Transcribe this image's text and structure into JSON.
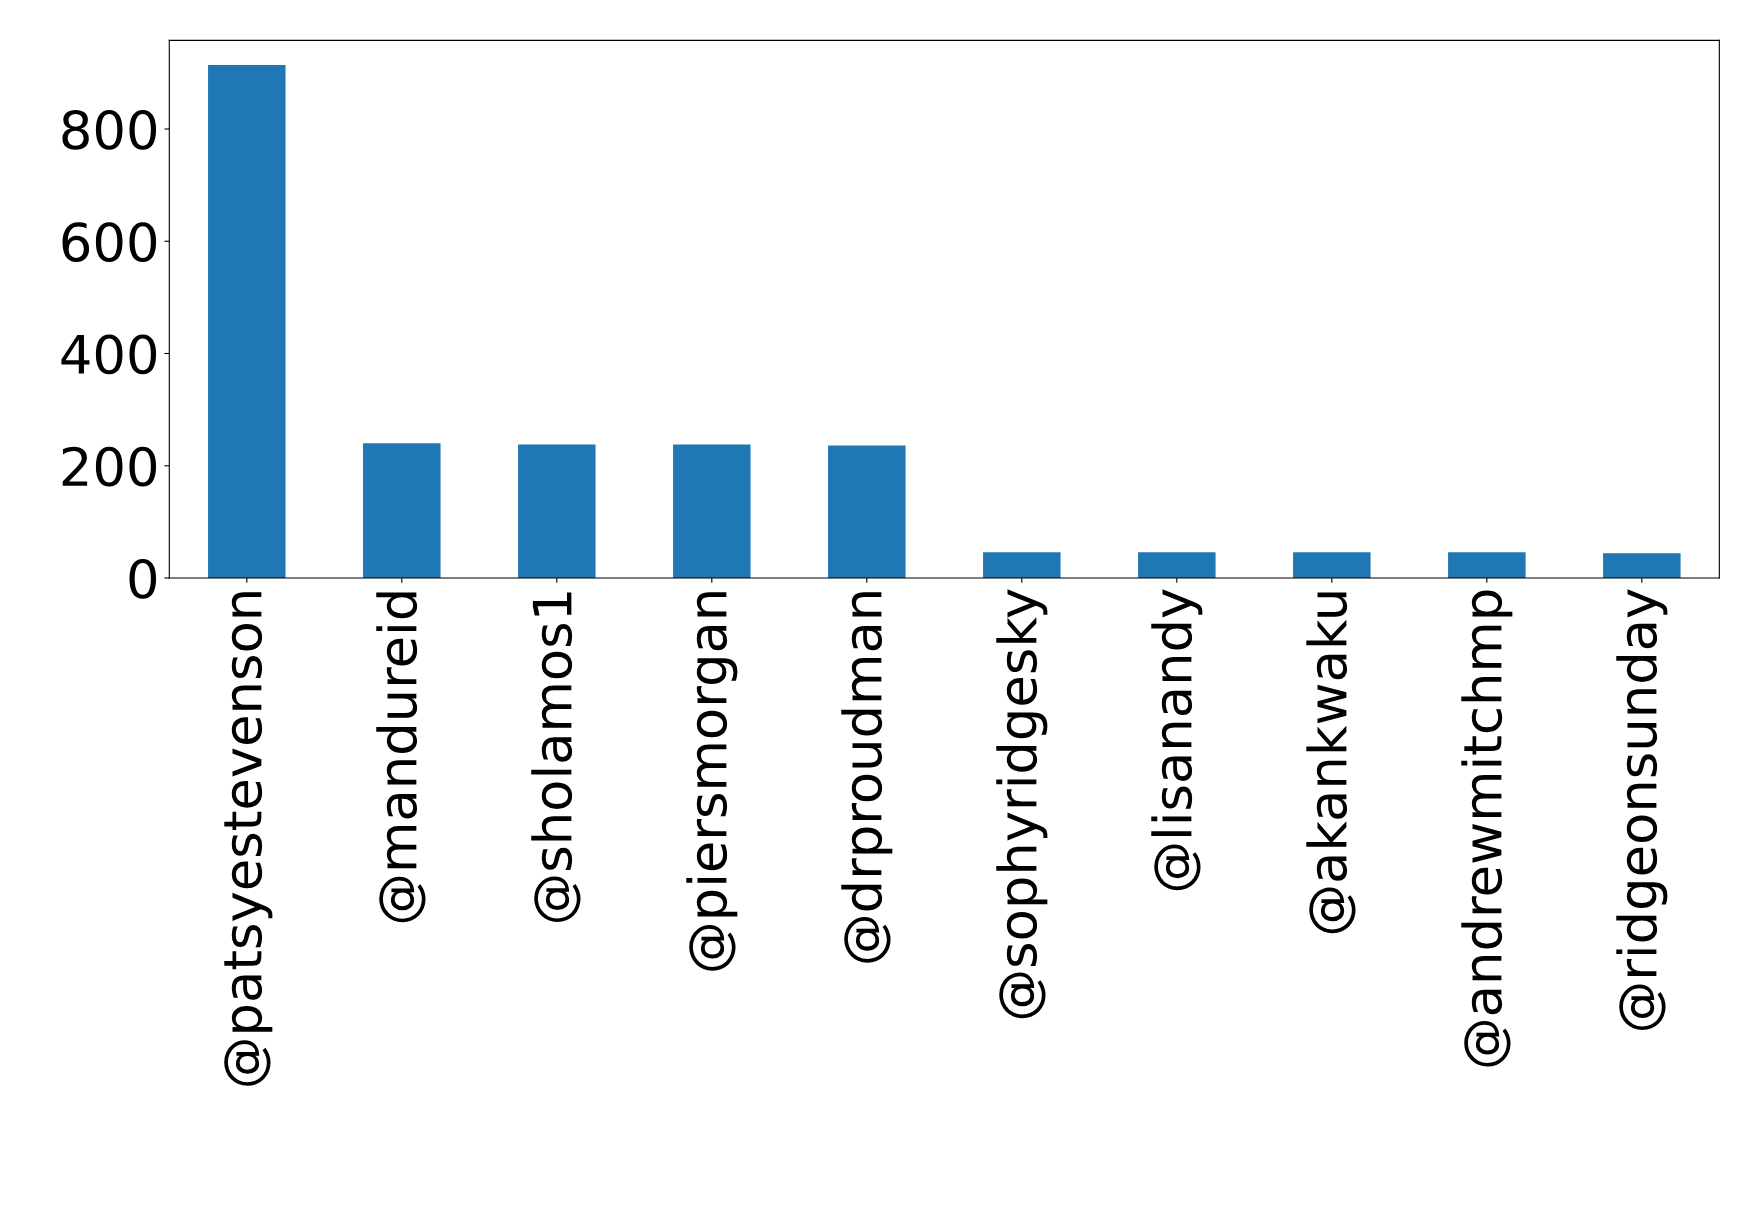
{
  "chart_data": {
    "type": "bar",
    "categories": [
      "@patsyestevenson",
      "@mandureid",
      "@sholamos1",
      "@piersmorgan",
      "@drproudman",
      "@sophyridgesky",
      "@lisanandy",
      "@akankwaku",
      "@andrewmitchmp",
      "@ridgeonsunday"
    ],
    "values": [
      914,
      240,
      238,
      238,
      236,
      46,
      46,
      46,
      46,
      44
    ],
    "color": "#1f77b4",
    "ylim": [
      0,
      958
    ],
    "yticks": [
      0,
      200,
      400,
      600,
      800
    ],
    "grid": false,
    "legend": false
  }
}
